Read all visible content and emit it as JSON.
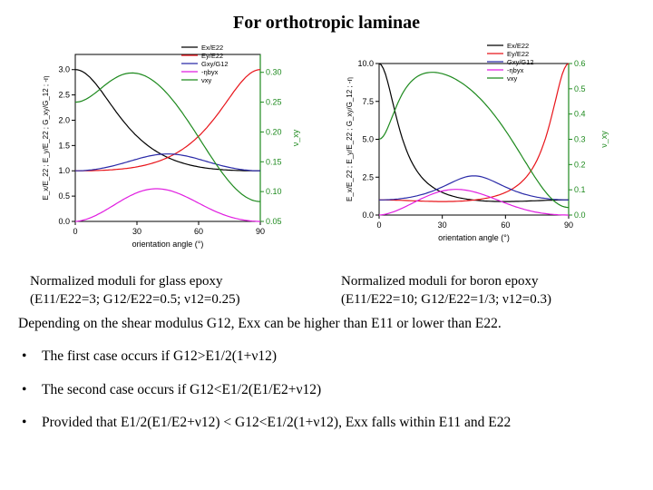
{
  "title": "For orthotropic laminae",
  "charts": [
    {
      "caption_line1": "Normalized moduli for glass epoxy",
      "caption_line2": "(E11/E22=3; G12/E22=0.5; ν12=0.25)",
      "xlabel": "orientation angle (°)",
      "ylabel_left": "E_x/E_22 ; E_y/E_22 ; G_xy/G_12 ; -η",
      "ylabel_right": "ν_xy",
      "x_ticks": [
        "0",
        "30",
        "60",
        "90"
      ],
      "y_left_ticks": [
        "0.0",
        "0.5",
        "1.0",
        "1.5",
        "2.0",
        "2.5",
        "3.0"
      ],
      "y_right_ticks": [
        "0.05",
        "0.10",
        "0.15",
        "0.20",
        "0.25",
        "0.30"
      ],
      "legend": [
        "Ex/E22",
        "Ey/E22",
        "Gxy/G12",
        "-ηbyx",
        "νxy"
      ]
    },
    {
      "caption_line1": "Normalized moduli for boron epoxy",
      "caption_line2": "(E11/E22=10; G12/E22=1/3; ν12=0.3)",
      "xlabel": "orientation angle (°)",
      "ylabel_left": "E_x/E_22 ; E_y/E_22 ; G_xy/G_12 ; -η",
      "ylabel_right": "ν_xy",
      "x_ticks": [
        "0",
        "30",
        "60",
        "90"
      ],
      "y_left_ticks": [
        "0.0",
        "2.5",
        "5.0",
        "7.5",
        "10.0"
      ],
      "y_right_ticks": [
        "0.0",
        "0.1",
        "0.2",
        "0.3",
        "0.4",
        "0.5",
        "0.6"
      ],
      "legend": [
        "Ex/E22",
        "Ey/E22",
        "Gxy/G12",
        "-ηbyx",
        "νxy"
      ]
    }
  ],
  "series_colors": {
    "Ex": "#000000",
    "Ey": "#e8141a",
    "Gxy": "#2a2aa8",
    "eta": "#e01ee0",
    "nu": "#1e8a1e"
  },
  "text": {
    "main_line": "Depending on the shear modulus G12, Exx can be higher than E11 or lower than E22.",
    "bullet1": "The first case occurs if G12>E1/2(1+ν12)",
    "bullet2": "The second case occurs if G12<E1/2(E1/E2+ν12)",
    "bullet3": "Provided that E1/2(E1/E2+ν12) < G12<E1/2(1+ν12), Exx falls within E11 and E22"
  }
}
